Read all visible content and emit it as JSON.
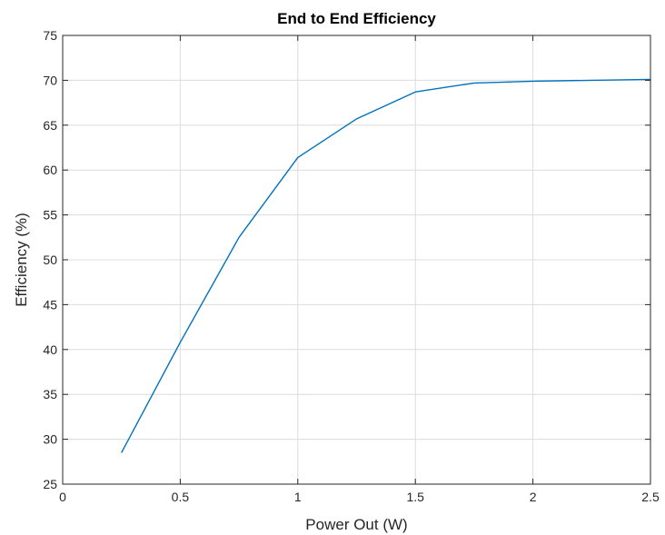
{
  "chart_data": {
    "type": "line",
    "title": "End to End Efficiency",
    "xlabel": "Power Out (W)",
    "ylabel": "Efficiency (%)",
    "xlim": [
      0,
      2.5
    ],
    "ylim": [
      25,
      75
    ],
    "xticks": [
      0,
      0.5,
      1,
      1.5,
      2,
      2.5
    ],
    "xtick_labels": [
      "0",
      "0.5",
      "1",
      "1.5",
      "2",
      "2.5"
    ],
    "yticks": [
      25,
      30,
      35,
      40,
      45,
      50,
      55,
      60,
      65,
      70,
      75
    ],
    "ytick_labels": [
      "25",
      "30",
      "35",
      "40",
      "45",
      "50",
      "55",
      "60",
      "65",
      "70",
      "75"
    ],
    "grid": true,
    "series": [
      {
        "color": "#0072BD",
        "x": [
          0.25,
          0.5,
          0.75,
          1.0,
          1.25,
          1.5,
          1.75,
          2.0,
          2.25,
          2.5
        ],
        "y": [
          28.5,
          40.8,
          52.5,
          61.4,
          65.7,
          68.7,
          69.7,
          69.9,
          70.0,
          70.1
        ]
      }
    ]
  }
}
